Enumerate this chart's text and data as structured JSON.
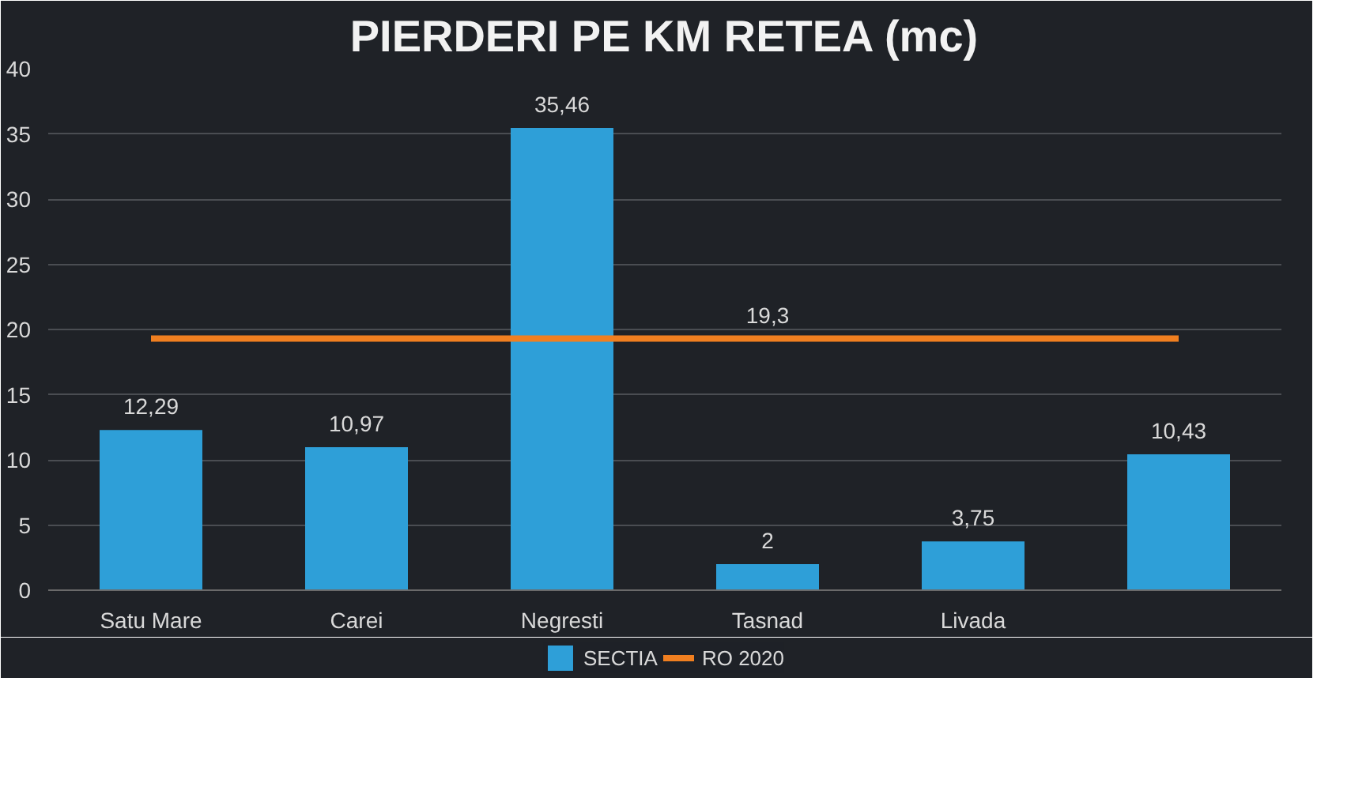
{
  "chart_data": {
    "type": "bar",
    "title": "PIERDERI PE KM RETEA (mc)",
    "categories": [
      "Satu Mare",
      "Carei",
      "Negresti",
      "Tasnad",
      "Livada",
      null
    ],
    "series": [
      {
        "name": "SECTIA",
        "color": "#2e9fd8",
        "values": [
          12.29,
          10.97,
          35.46,
          2,
          3.75,
          10.43
        ],
        "value_labels": [
          "12,29",
          "10,97",
          "35,46",
          "2",
          "3,75",
          "10,43"
        ]
      },
      {
        "name": "RO 2020",
        "type": "line",
        "color": "#f07f20",
        "values": [
          19.3,
          19.3,
          19.3,
          19.3,
          19.3,
          19.3
        ],
        "value_labels": [
          null,
          null,
          null,
          "19,3",
          null,
          null
        ]
      }
    ],
    "ylim": [
      0,
      40
    ],
    "yticks": [
      0,
      5,
      10,
      15,
      20,
      25,
      30,
      35,
      40
    ],
    "grid": "y",
    "legend": "bottom"
  }
}
